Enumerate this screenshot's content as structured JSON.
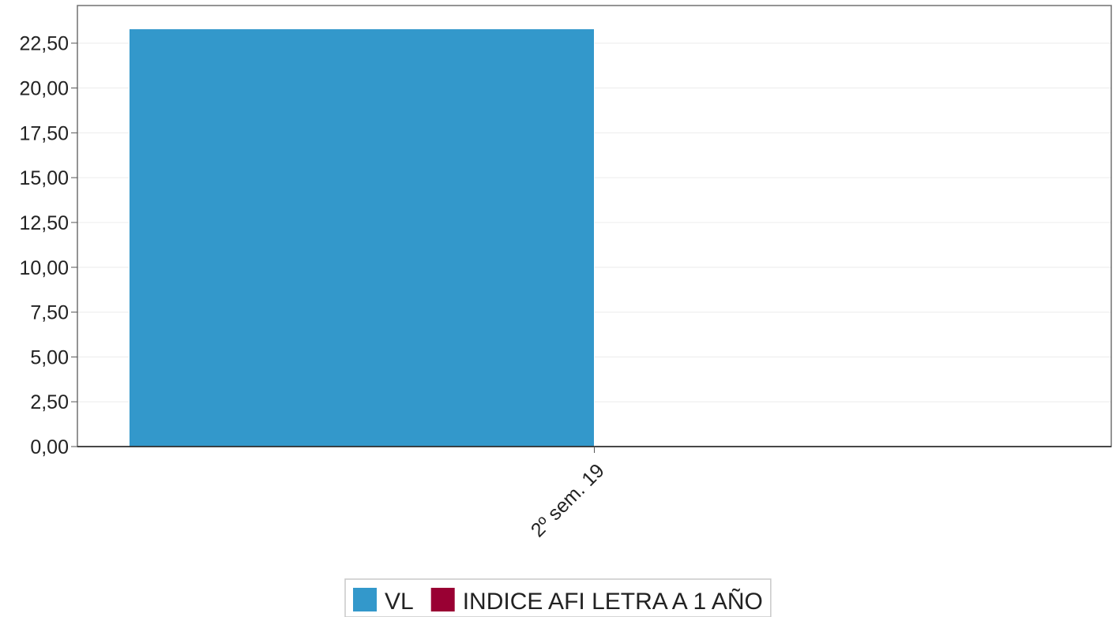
{
  "chart_data": {
    "type": "bar",
    "categories": [
      "2º sem. 19"
    ],
    "series": [
      {
        "name": "VL",
        "color": "#3398cb",
        "values": [
          23.3
        ]
      },
      {
        "name": "INDICE AFI LETRA A 1 AÑO",
        "color": "#990033",
        "values": [
          null
        ]
      }
    ],
    "y_ticks": [
      "0,00",
      "2,50",
      "5,00",
      "7,50",
      "10,00",
      "12,50",
      "15,00",
      "17,50",
      "20,00",
      "22,50"
    ],
    "ylim": [
      0,
      24.6
    ],
    "grid": true,
    "legend_position": "bottom-center",
    "title": "",
    "xlabel": "",
    "ylabel": ""
  }
}
